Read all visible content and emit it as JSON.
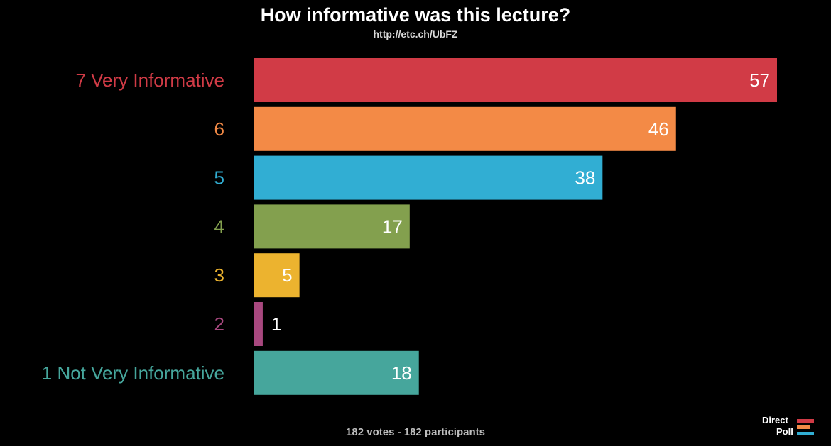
{
  "header": {
    "title": "How informative was this lecture?",
    "url": "http://etc.ch/UbFZ"
  },
  "chart_data": {
    "type": "bar",
    "orientation": "horizontal",
    "categories": [
      "7 Very Informative",
      "6",
      "5",
      "4",
      "3",
      "2",
      "1 Not Very Informative"
    ],
    "values": [
      57,
      46,
      38,
      17,
      5,
      1,
      18
    ],
    "colors": [
      "#d13b46",
      "#f38a46",
      "#31aed3",
      "#83a04e",
      "#ecb32f",
      "#a8487f",
      "#46a69c"
    ],
    "xlim": [
      0,
      57
    ],
    "grid": false,
    "legend": "none"
  },
  "footer": {
    "summary": "182 votes - 182 participants"
  },
  "logo": {
    "line1": "Direct",
    "line2": "Poll",
    "colors": [
      "#d13b46",
      "#f38a46",
      "#31aed3"
    ]
  }
}
